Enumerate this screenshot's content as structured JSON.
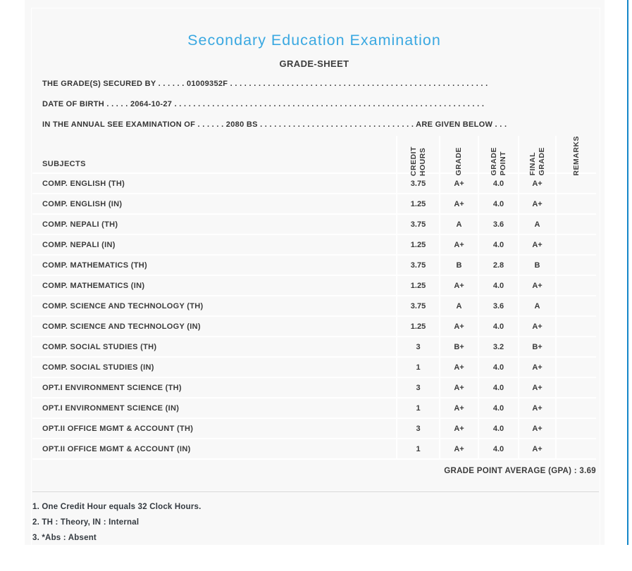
{
  "colors": {
    "title_accent": "#3aa8e1",
    "page_edge_accent": "#1587c8",
    "card_background": "#f8f8f8",
    "text": "#3b3b3b"
  },
  "header": {
    "title": "Secondary Education Examination",
    "subtitle": "GRADE-SHEET",
    "lines": [
      "THE GRADE(S) SECURED BY . . . . . . 01009352F . . . . . . . . . . . . . . . . . . . . . . . . . . . . . . . . . . . . . . . . . . . . . . . . . . . . . . .",
      "DATE OF BIRTH . . . . . 2064-10-27 . . . . . . . . . . . . . . . . . . . . . . . . . . . . . . . . . . . . . . . . . . . . . . . . . . . . . . . . . . . . . . . . . .",
      "IN THE ANNUAL SEE EXAMINATION OF . . . . . . 2080 BS . . . . . . . . . . . . . . . . . . . . . . . . . . . . . . . . . ARE GIVEN BELOW . . ."
    ],
    "candidate_symbol": "01009352F",
    "date_of_birth": "2064-10-27",
    "exam_year": "2080 BS"
  },
  "table": {
    "columns": [
      "SUBJECTS",
      "CREDIT\nHOURS",
      "GRADE",
      "GRADE\nPOINT",
      "FINAL\nGRADE",
      "REMARKS"
    ],
    "rows": [
      {
        "subject": "COMP. ENGLISH (TH)",
        "credit_hours": "3.75",
        "grade": "A+",
        "grade_point": "4.0",
        "final_grade": "A+",
        "remarks": ""
      },
      {
        "subject": "COMP. ENGLISH (IN)",
        "credit_hours": "1.25",
        "grade": "A+",
        "grade_point": "4.0",
        "final_grade": "A+",
        "remarks": ""
      },
      {
        "subject": "COMP. NEPALI (TH)",
        "credit_hours": "3.75",
        "grade": "A",
        "grade_point": "3.6",
        "final_grade": "A",
        "remarks": ""
      },
      {
        "subject": "COMP. NEPALI (IN)",
        "credit_hours": "1.25",
        "grade": "A+",
        "grade_point": "4.0",
        "final_grade": "A+",
        "remarks": ""
      },
      {
        "subject": "COMP. MATHEMATICS (TH)",
        "credit_hours": "3.75",
        "grade": "B",
        "grade_point": "2.8",
        "final_grade": "B",
        "remarks": ""
      },
      {
        "subject": "COMP. MATHEMATICS (IN)",
        "credit_hours": "1.25",
        "grade": "A+",
        "grade_point": "4.0",
        "final_grade": "A+",
        "remarks": ""
      },
      {
        "subject": "COMP. SCIENCE AND TECHNOLOGY (TH)",
        "credit_hours": "3.75",
        "grade": "A",
        "grade_point": "3.6",
        "final_grade": "A",
        "remarks": ""
      },
      {
        "subject": "COMP. SCIENCE AND TECHNOLOGY (IN)",
        "credit_hours": "1.25",
        "grade": "A+",
        "grade_point": "4.0",
        "final_grade": "A+",
        "remarks": ""
      },
      {
        "subject": "COMP. SOCIAL STUDIES (TH)",
        "credit_hours": "3",
        "grade": "B+",
        "grade_point": "3.2",
        "final_grade": "B+",
        "remarks": ""
      },
      {
        "subject": "COMP. SOCIAL STUDIES (IN)",
        "credit_hours": "1",
        "grade": "A+",
        "grade_point": "4.0",
        "final_grade": "A+",
        "remarks": ""
      },
      {
        "subject": "OPT.I ENVIRONMENT SCIENCE (TH)",
        "credit_hours": "3",
        "grade": "A+",
        "grade_point": "4.0",
        "final_grade": "A+",
        "remarks": ""
      },
      {
        "subject": "OPT.I ENVIRONMENT SCIENCE (IN)",
        "credit_hours": "1",
        "grade": "A+",
        "grade_point": "4.0",
        "final_grade": "A+",
        "remarks": ""
      },
      {
        "subject": "OPT.II OFFICE MGMT & ACCOUNT (TH)",
        "credit_hours": "3",
        "grade": "A+",
        "grade_point": "4.0",
        "final_grade": "A+",
        "remarks": ""
      },
      {
        "subject": "OPT.II OFFICE MGMT & ACCOUNT (IN)",
        "credit_hours": "1",
        "grade": "A+",
        "grade_point": "4.0",
        "final_grade": "A+",
        "remarks": ""
      }
    ]
  },
  "summary": {
    "gpa_text": "GRADE POINT AVERAGE (GPA) : 3.69",
    "gpa_value": "3.69"
  },
  "notes": [
    "1. One Credit Hour equals 32 Clock Hours.",
    "2. TH : Theory, IN : Internal",
    "3. *Abs : Absent"
  ]
}
